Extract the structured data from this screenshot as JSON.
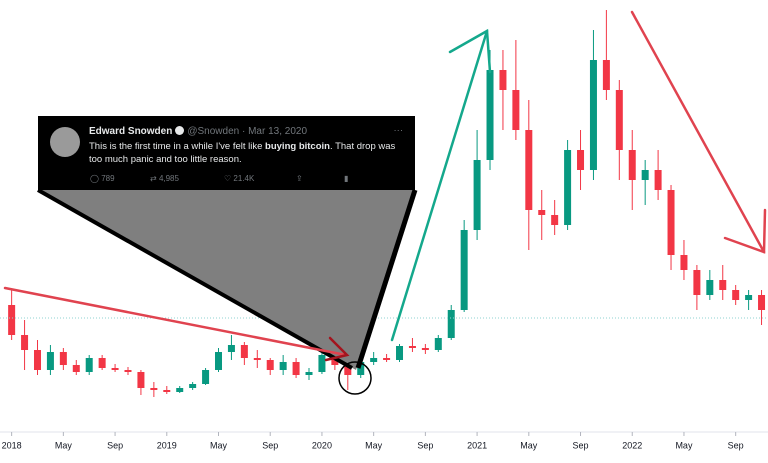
{
  "chart_data": {
    "type": "candlestick",
    "x": [
      0,
      1,
      2,
      3,
      4,
      5,
      6,
      7,
      8,
      9,
      10,
      11,
      12,
      13,
      14,
      15,
      16,
      17,
      18,
      19,
      20,
      21,
      22,
      23,
      24,
      25,
      26,
      27,
      28,
      29,
      30,
      31,
      32,
      33,
      34,
      35,
      36,
      37,
      38,
      39,
      40,
      41,
      42,
      43,
      44,
      45,
      46,
      47,
      48,
      49,
      50,
      51,
      52,
      53,
      54,
      55,
      56,
      57,
      58
    ],
    "open": [
      125,
      95,
      80,
      60,
      78,
      65,
      58,
      72,
      62,
      60,
      58,
      42,
      40,
      38,
      42,
      46,
      60,
      78,
      85,
      72,
      70,
      60,
      68,
      55,
      58,
      75,
      65,
      55,
      68,
      72,
      70,
      84,
      82,
      80,
      92,
      120,
      200,
      270,
      360,
      340,
      300,
      220,
      215,
      205,
      280,
      260,
      370,
      340,
      280,
      250,
      260,
      240,
      175,
      160,
      135,
      150,
      140,
      130,
      135
    ],
    "high": [
      140,
      110,
      90,
      85,
      82,
      70,
      75,
      75,
      66,
      63,
      60,
      48,
      44,
      44,
      48,
      62,
      82,
      95,
      88,
      80,
      72,
      75,
      72,
      62,
      80,
      82,
      70,
      72,
      78,
      76,
      86,
      92,
      86,
      95,
      125,
      210,
      300,
      380,
      380,
      390,
      330,
      240,
      230,
      290,
      300,
      400,
      420,
      350,
      300,
      270,
      280,
      245,
      190,
      165,
      160,
      165,
      145,
      140,
      140
    ],
    "low": [
      90,
      60,
      55,
      55,
      60,
      55,
      55,
      60,
      58,
      55,
      35,
      33,
      36,
      37,
      40,
      45,
      58,
      70,
      65,
      62,
      55,
      55,
      52,
      50,
      56,
      60,
      40,
      52,
      65,
      68,
      68,
      78,
      76,
      78,
      90,
      118,
      190,
      260,
      300,
      290,
      180,
      190,
      195,
      200,
      240,
      250,
      330,
      250,
      220,
      225,
      230,
      160,
      150,
      120,
      130,
      130,
      125,
      120,
      105
    ],
    "close": [
      95,
      80,
      60,
      78,
      65,
      58,
      72,
      62,
      60,
      58,
      42,
      40,
      38,
      42,
      46,
      60,
      78,
      85,
      72,
      70,
      60,
      68,
      55,
      58,
      75,
      65,
      55,
      68,
      72,
      70,
      84,
      82,
      80,
      92,
      120,
      200,
      270,
      360,
      340,
      300,
      220,
      215,
      205,
      280,
      260,
      370,
      340,
      280,
      250,
      260,
      240,
      175,
      160,
      135,
      150,
      140,
      130,
      135,
      120
    ],
    "xlim": [
      -0.9,
      58.5
    ],
    "ylim": [
      0,
      430
    ],
    "xticks": [
      {
        "value": 0,
        "label": "2018"
      },
      {
        "value": 4,
        "label": "May"
      },
      {
        "value": 8,
        "label": "Sep"
      },
      {
        "value": 12,
        "label": "2019"
      },
      {
        "value": 16,
        "label": "May"
      },
      {
        "value": 20,
        "label": "Sep"
      },
      {
        "value": 24,
        "label": "2020"
      },
      {
        "value": 28,
        "label": "May"
      },
      {
        "value": 32,
        "label": "Sep"
      },
      {
        "value": 36,
        "label": "2021"
      },
      {
        "value": 40,
        "label": "May"
      },
      {
        "value": 44,
        "label": "Sep"
      },
      {
        "value": 48,
        "label": "2022"
      },
      {
        "value": 52,
        "label": "May"
      },
      {
        "value": 56,
        "label": "Sep"
      }
    ],
    "up_color": "#089981",
    "down_color": "#f23645",
    "tweet": {
      "name": "Edward Snowden",
      "handle": "@Snowden · Mar 13, 2020",
      "more": "···",
      "text": [
        "This is the first time in a while I've felt like ",
        "buying bitcoin",
        ". That drop was too much panic and too little reason."
      ],
      "replies": "789",
      "retweets": "4,985",
      "likes": "21.4K"
    }
  }
}
